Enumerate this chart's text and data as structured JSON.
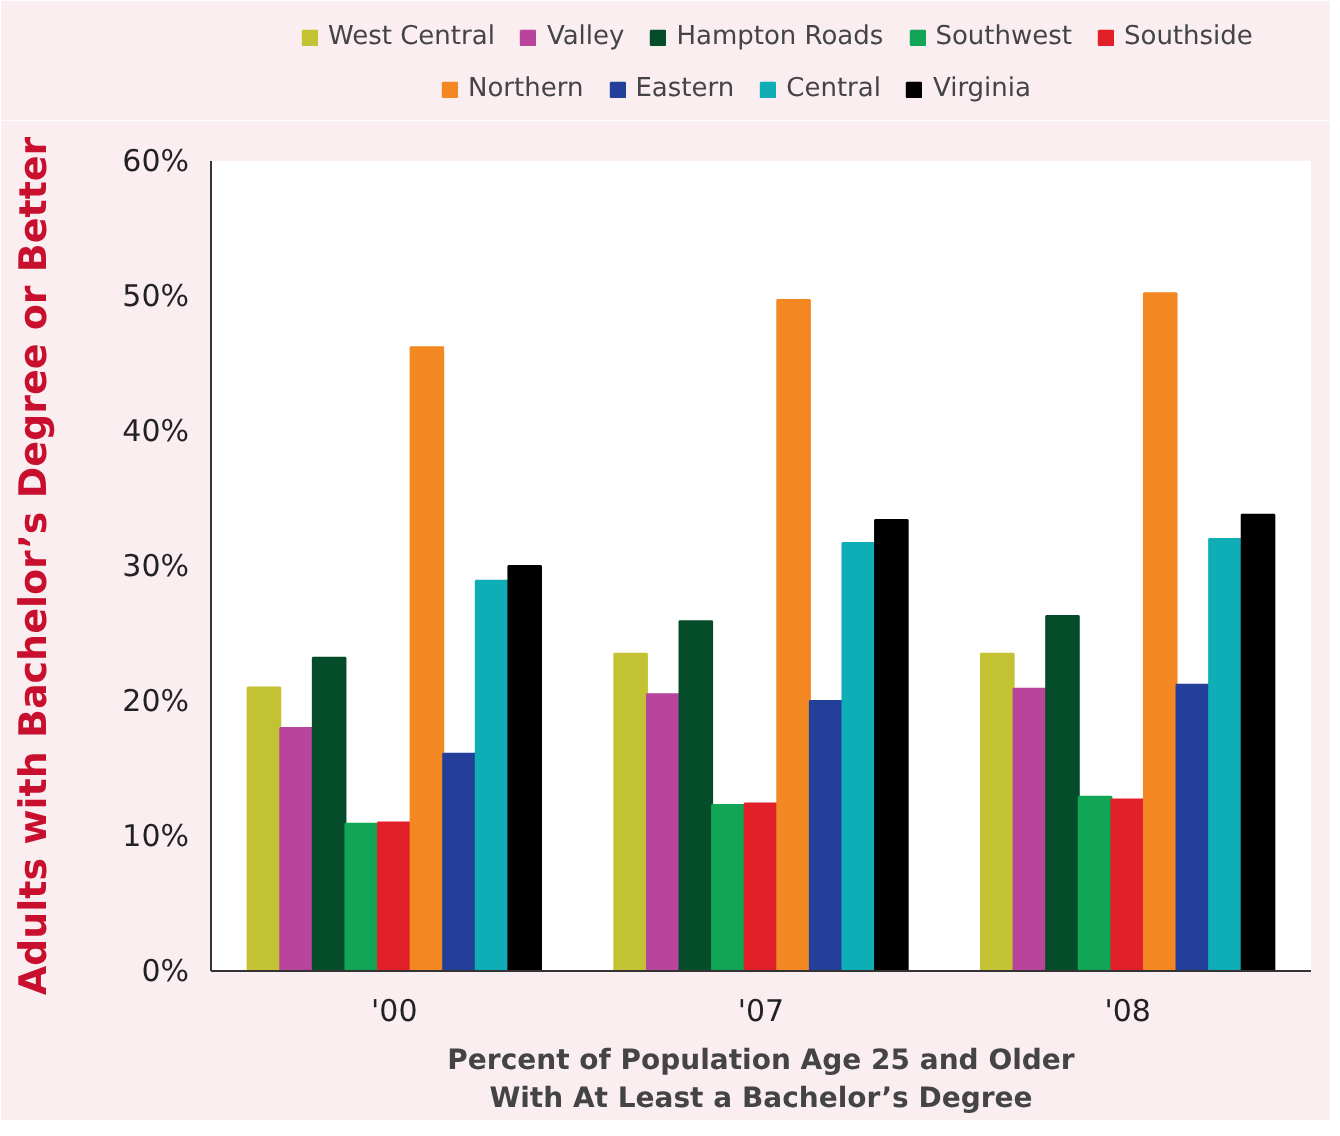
{
  "chart_data": {
    "type": "bar",
    "ylabel": "Adults with Bachelor’s Degree or Better",
    "xlabel": "Percent of Population Age 25 and Older\nWith At Least a Bachelor’s Degree",
    "categories": [
      "'00",
      "'07",
      "'08"
    ],
    "series": [
      {
        "name": "West Central",
        "color": "#c3c232",
        "values": [
          21.0,
          23.5,
          23.5
        ]
      },
      {
        "name": "Valley",
        "color": "#b9449c",
        "values": [
          18.0,
          20.5,
          20.9
        ]
      },
      {
        "name": "Hampton Roads",
        "color": "#054d2a",
        "values": [
          23.2,
          25.9,
          26.3
        ]
      },
      {
        "name": "Southwest",
        "color": "#10a655",
        "values": [
          10.9,
          12.3,
          12.9
        ]
      },
      {
        "name": "Southside",
        "color": "#e1202a",
        "values": [
          11.0,
          12.4,
          12.7
        ]
      },
      {
        "name": "Northern",
        "color": "#f38721",
        "values": [
          46.2,
          49.7,
          50.2
        ]
      },
      {
        "name": "Eastern",
        "color": "#233f9a",
        "values": [
          16.1,
          20.0,
          21.2
        ]
      },
      {
        "name": "Central",
        "color": "#0fadb5",
        "values": [
          28.9,
          31.7,
          32.0
        ]
      },
      {
        "name": "Virginia",
        "color": "#000000",
        "values": [
          30.0,
          33.4,
          33.8
        ]
      }
    ],
    "ylim": [
      0,
      60
    ],
    "yticks": [
      {
        "value": 0,
        "label": "0%"
      },
      {
        "value": 10,
        "label": "10%"
      },
      {
        "value": 20,
        "label": "20%"
      },
      {
        "value": 30,
        "label": "30%"
      },
      {
        "value": 40,
        "label": "40%"
      },
      {
        "value": 50,
        "label": "50%"
      },
      {
        "value": 60,
        "label": "60%"
      }
    ],
    "grid": false,
    "legend": "top"
  }
}
